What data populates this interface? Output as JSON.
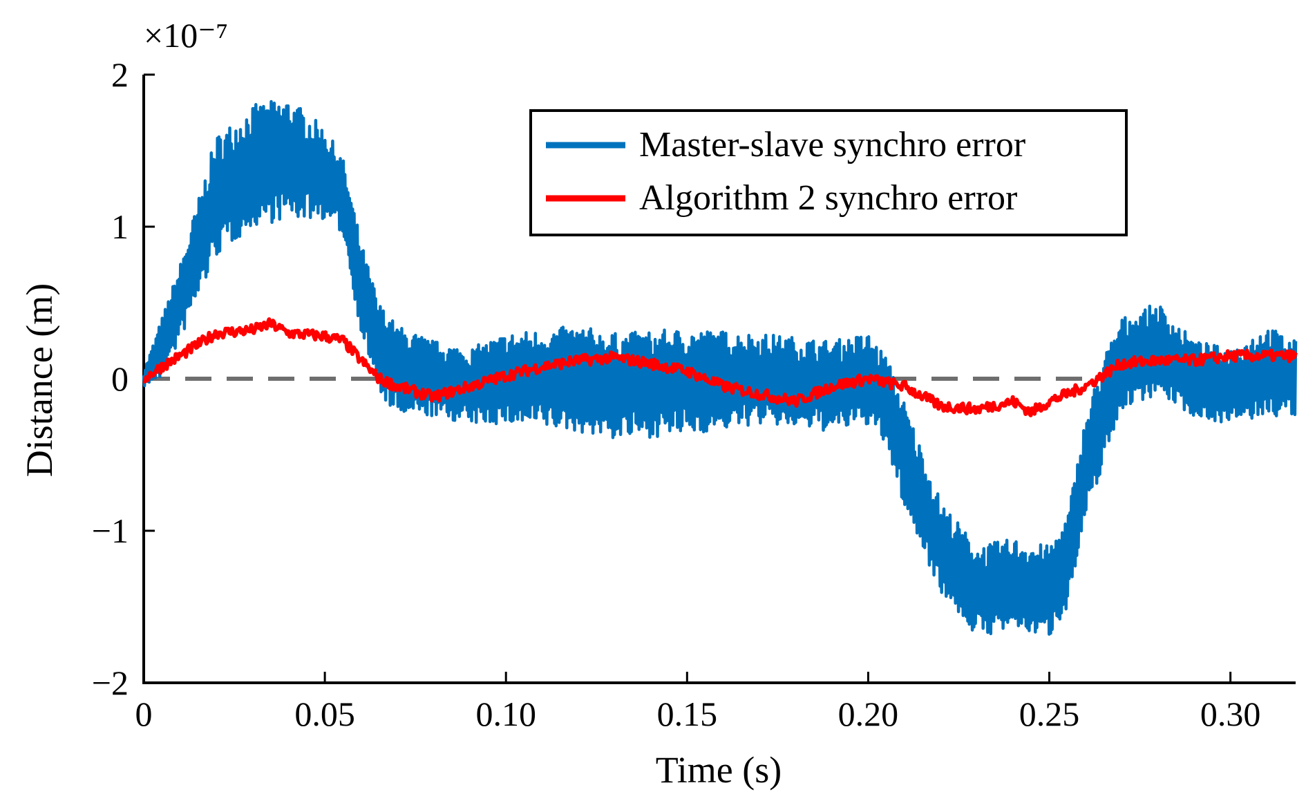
{
  "chart_data": {
    "type": "line",
    "xlabel": "Time (s)",
    "ylabel": "Distance (m)",
    "y_exponent_label": "×10⁻⁷",
    "xlim": [
      0,
      0.318
    ],
    "ylim": [
      -2e-07,
      2e-07
    ],
    "x_ticks": [
      0,
      0.05,
      0.1,
      0.15,
      0.2,
      0.25,
      0.3
    ],
    "x_tick_labels": [
      "0",
      "0.05",
      "0.10",
      "0.15",
      "0.20",
      "0.25",
      "0.30"
    ],
    "y_ticks": [
      -2,
      -1,
      0,
      1,
      2
    ],
    "y_tick_labels": [
      "−2",
      "−1",
      "0",
      "1",
      "2"
    ],
    "grid": false,
    "legend_position": "top-right",
    "reference_line": {
      "y": 0,
      "style": "dashed",
      "color": "#6e6e6e"
    },
    "series": [
      {
        "name": "Master-slave synchro error",
        "color": "#0072bd",
        "envelope_centre_x": [
          0,
          0.005,
          0.01,
          0.02,
          0.03,
          0.04,
          0.05,
          0.055,
          0.06,
          0.065,
          0.07,
          0.08,
          0.09,
          0.1,
          0.12,
          0.13,
          0.15,
          0.17,
          0.19,
          0.2,
          0.205,
          0.21,
          0.22,
          0.23,
          0.24,
          0.25,
          0.255,
          0.26,
          0.265,
          0.27,
          0.28,
          0.29,
          0.3,
          0.31,
          0.318
        ],
        "envelope_centre_y": [
          0,
          0.2,
          0.5,
          1.2,
          1.4,
          1.45,
          1.35,
          1.2,
          0.6,
          0.2,
          0.05,
          0.0,
          -0.05,
          0.0,
          0.0,
          -0.05,
          -0.02,
          0.0,
          -0.05,
          0.0,
          -0.15,
          -0.5,
          -1.1,
          -1.4,
          -1.35,
          -1.4,
          -1.2,
          -0.6,
          -0.2,
          0.1,
          0.2,
          0.0,
          -0.05,
          0.05,
          0.0
        ],
        "envelope_half_width_y": [
          0.05,
          0.2,
          0.25,
          0.4,
          0.4,
          0.4,
          0.3,
          0.25,
          0.3,
          0.3,
          0.3,
          0.25,
          0.25,
          0.3,
          0.35,
          0.35,
          0.35,
          0.3,
          0.3,
          0.3,
          0.3,
          0.35,
          0.3,
          0.3,
          0.3,
          0.3,
          0.3,
          0.35,
          0.35,
          0.3,
          0.3,
          0.25,
          0.25,
          0.3,
          0.25
        ],
        "y_scale": 1e-07
      },
      {
        "name": "Algorithm 2 synchro error",
        "color": "#ff0000",
        "x": [
          0,
          0.005,
          0.01,
          0.02,
          0.03,
          0.035,
          0.04,
          0.05,
          0.055,
          0.06,
          0.065,
          0.07,
          0.08,
          0.09,
          0.1,
          0.11,
          0.12,
          0.13,
          0.14,
          0.15,
          0.16,
          0.17,
          0.18,
          0.19,
          0.2,
          0.21,
          0.22,
          0.23,
          0.24,
          0.245,
          0.25,
          0.26,
          0.27,
          0.28,
          0.29,
          0.3,
          0.31,
          0.318
        ],
        "y": [
          0.0,
          0.08,
          0.15,
          0.3,
          0.32,
          0.36,
          0.3,
          0.28,
          0.25,
          0.12,
          0.0,
          -0.05,
          -0.12,
          -0.05,
          0.02,
          0.08,
          0.12,
          0.14,
          0.1,
          0.05,
          -0.05,
          -0.1,
          -0.15,
          -0.05,
          0.0,
          -0.05,
          -0.18,
          -0.2,
          -0.15,
          -0.22,
          -0.15,
          -0.05,
          0.1,
          0.12,
          0.12,
          0.15,
          0.15,
          0.15
        ],
        "noise_y": 0.035,
        "y_scale": 1e-07
      }
    ]
  }
}
